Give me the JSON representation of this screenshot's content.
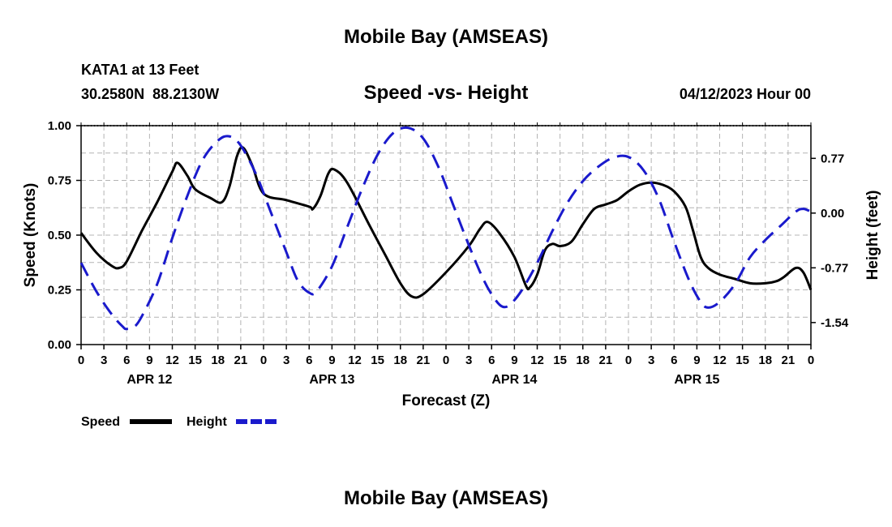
{
  "page": {
    "title_top": "Mobile Bay (AMSEAS)",
    "title_bottom": "Mobile Bay (AMSEAS)",
    "station": "KATA1 at 13 Feet",
    "coords": "30.2580N  88.2130W",
    "chart_title": "Speed -vs- Height",
    "date": "04/12/2023 Hour 00"
  },
  "legend": {
    "speed_label": "Speed",
    "height_label": "Height"
  },
  "colors": {
    "speed": "#000000",
    "height": "#1a1acc",
    "grid": "#b4b4b4"
  },
  "chart_data": {
    "type": "line",
    "title": "Speed -vs- Height",
    "xlabel": "Forecast (Z)",
    "ylabel": "Speed (Knots)",
    "y2label": "Height (feet)",
    "x_range_hours": [
      0,
      96
    ],
    "x_tick_labels": [
      "0",
      "3",
      "6",
      "9",
      "12",
      "15",
      "18",
      "21",
      "0",
      "3",
      "6",
      "9",
      "12",
      "15",
      "18",
      "21",
      "0",
      "3",
      "6",
      "9",
      "12",
      "15",
      "18",
      "21",
      "0",
      "3",
      "6",
      "9",
      "12",
      "15",
      "18",
      "21",
      "0"
    ],
    "day_labels": [
      {
        "label": "APR 12",
        "hour": 9
      },
      {
        "label": "APR 13",
        "hour": 33
      },
      {
        "label": "APR 14",
        "hour": 57
      },
      {
        "label": "APR 15",
        "hour": 81
      }
    ],
    "ylim": [
      0,
      1.0
    ],
    "y_ticks": [
      "0.00",
      "0.25",
      "0.50",
      "0.75",
      "1.00"
    ],
    "y2lim": [
      -1.85,
      1.23
    ],
    "y2_ticks": [
      "0.77",
      "0.00",
      "-0.77",
      "-1.54"
    ],
    "grid": true,
    "legend_position": "bottom-left",
    "series": [
      {
        "name": "Speed",
        "style": "solid",
        "axis": "left",
        "points": [
          [
            0,
            0.51
          ],
          [
            2,
            0.42
          ],
          [
            4,
            0.36
          ],
          [
            5,
            0.35
          ],
          [
            6,
            0.38
          ],
          [
            8,
            0.52
          ],
          [
            10,
            0.65
          ],
          [
            12,
            0.79
          ],
          [
            12.7,
            0.83
          ],
          [
            14,
            0.77
          ],
          [
            15,
            0.71
          ],
          [
            17,
            0.67
          ],
          [
            18.5,
            0.65
          ],
          [
            19.5,
            0.72
          ],
          [
            20.5,
            0.86
          ],
          [
            21.3,
            0.9
          ],
          [
            22.5,
            0.82
          ],
          [
            24,
            0.69
          ],
          [
            27,
            0.66
          ],
          [
            30,
            0.63
          ],
          [
            30.5,
            0.62
          ],
          [
            31.5,
            0.68
          ],
          [
            32.5,
            0.78
          ],
          [
            33.3,
            0.8
          ],
          [
            35,
            0.74
          ],
          [
            38,
            0.54
          ],
          [
            40,
            0.41
          ],
          [
            42,
            0.28
          ],
          [
            43.5,
            0.22
          ],
          [
            45,
            0.23
          ],
          [
            48,
            0.33
          ],
          [
            51,
            0.45
          ],
          [
            52.5,
            0.53
          ],
          [
            53.5,
            0.56
          ],
          [
            55,
            0.51
          ],
          [
            57,
            0.4
          ],
          [
            58.5,
            0.27
          ],
          [
            59,
            0.26
          ],
          [
            60,
            0.32
          ],
          [
            61,
            0.43
          ],
          [
            62,
            0.46
          ],
          [
            63,
            0.45
          ],
          [
            64.5,
            0.47
          ],
          [
            66,
            0.55
          ],
          [
            67.5,
            0.62
          ],
          [
            69,
            0.64
          ],
          [
            70.5,
            0.66
          ],
          [
            72,
            0.7
          ],
          [
            73.5,
            0.73
          ],
          [
            75,
            0.74
          ],
          [
            76.5,
            0.73
          ],
          [
            78,
            0.7
          ],
          [
            79.5,
            0.63
          ],
          [
            80.5,
            0.52
          ],
          [
            81.5,
            0.4
          ],
          [
            82.5,
            0.35
          ],
          [
            84,
            0.32
          ],
          [
            86,
            0.3
          ],
          [
            88,
            0.28
          ],
          [
            90,
            0.28
          ],
          [
            91.5,
            0.29
          ],
          [
            92.5,
            0.31
          ],
          [
            94,
            0.35
          ],
          [
            95,
            0.33
          ],
          [
            96,
            0.25
          ]
        ]
      },
      {
        "name": "Height",
        "style": "dashed",
        "axis": "right",
        "points": [
          [
            0,
            -0.7
          ],
          [
            2,
            -1.1
          ],
          [
            4,
            -1.42
          ],
          [
            5.5,
            -1.6
          ],
          [
            6,
            -1.63
          ],
          [
            7,
            -1.6
          ],
          [
            8,
            -1.45
          ],
          [
            10,
            -1.0
          ],
          [
            12,
            -0.35
          ],
          [
            14,
            0.25
          ],
          [
            16,
            0.75
          ],
          [
            18,
            1.02
          ],
          [
            19.5,
            1.08
          ],
          [
            21,
            0.95
          ],
          [
            23,
            0.55
          ],
          [
            25,
            0.0
          ],
          [
            27,
            -0.55
          ],
          [
            28.5,
            -0.95
          ],
          [
            30,
            -1.12
          ],
          [
            31,
            -1.1
          ],
          [
            33,
            -0.75
          ],
          [
            35,
            -0.2
          ],
          [
            37,
            0.35
          ],
          [
            39,
            0.82
          ],
          [
            41,
            1.12
          ],
          [
            43,
            1.2
          ],
          [
            45,
            1.05
          ],
          [
            47,
            0.65
          ],
          [
            49,
            0.1
          ],
          [
            51,
            -0.45
          ],
          [
            53,
            -0.95
          ],
          [
            54.5,
            -1.22
          ],
          [
            55.5,
            -1.32
          ],
          [
            56.5,
            -1.28
          ],
          [
            58,
            -1.08
          ],
          [
            60,
            -0.7
          ],
          [
            62,
            -0.25
          ],
          [
            64,
            0.15
          ],
          [
            66,
            0.45
          ],
          [
            68,
            0.65
          ],
          [
            70,
            0.78
          ],
          [
            72,
            0.79
          ],
          [
            74,
            0.6
          ],
          [
            76,
            0.2
          ],
          [
            78,
            -0.4
          ],
          [
            80,
            -0.95
          ],
          [
            81.5,
            -1.25
          ],
          [
            82.5,
            -1.33
          ],
          [
            84,
            -1.25
          ],
          [
            86,
            -1.0
          ],
          [
            88,
            -0.62
          ],
          [
            90,
            -0.38
          ],
          [
            92,
            -0.18
          ],
          [
            94,
            0.02
          ],
          [
            95,
            0.06
          ],
          [
            96,
            0.02
          ]
        ]
      }
    ]
  }
}
